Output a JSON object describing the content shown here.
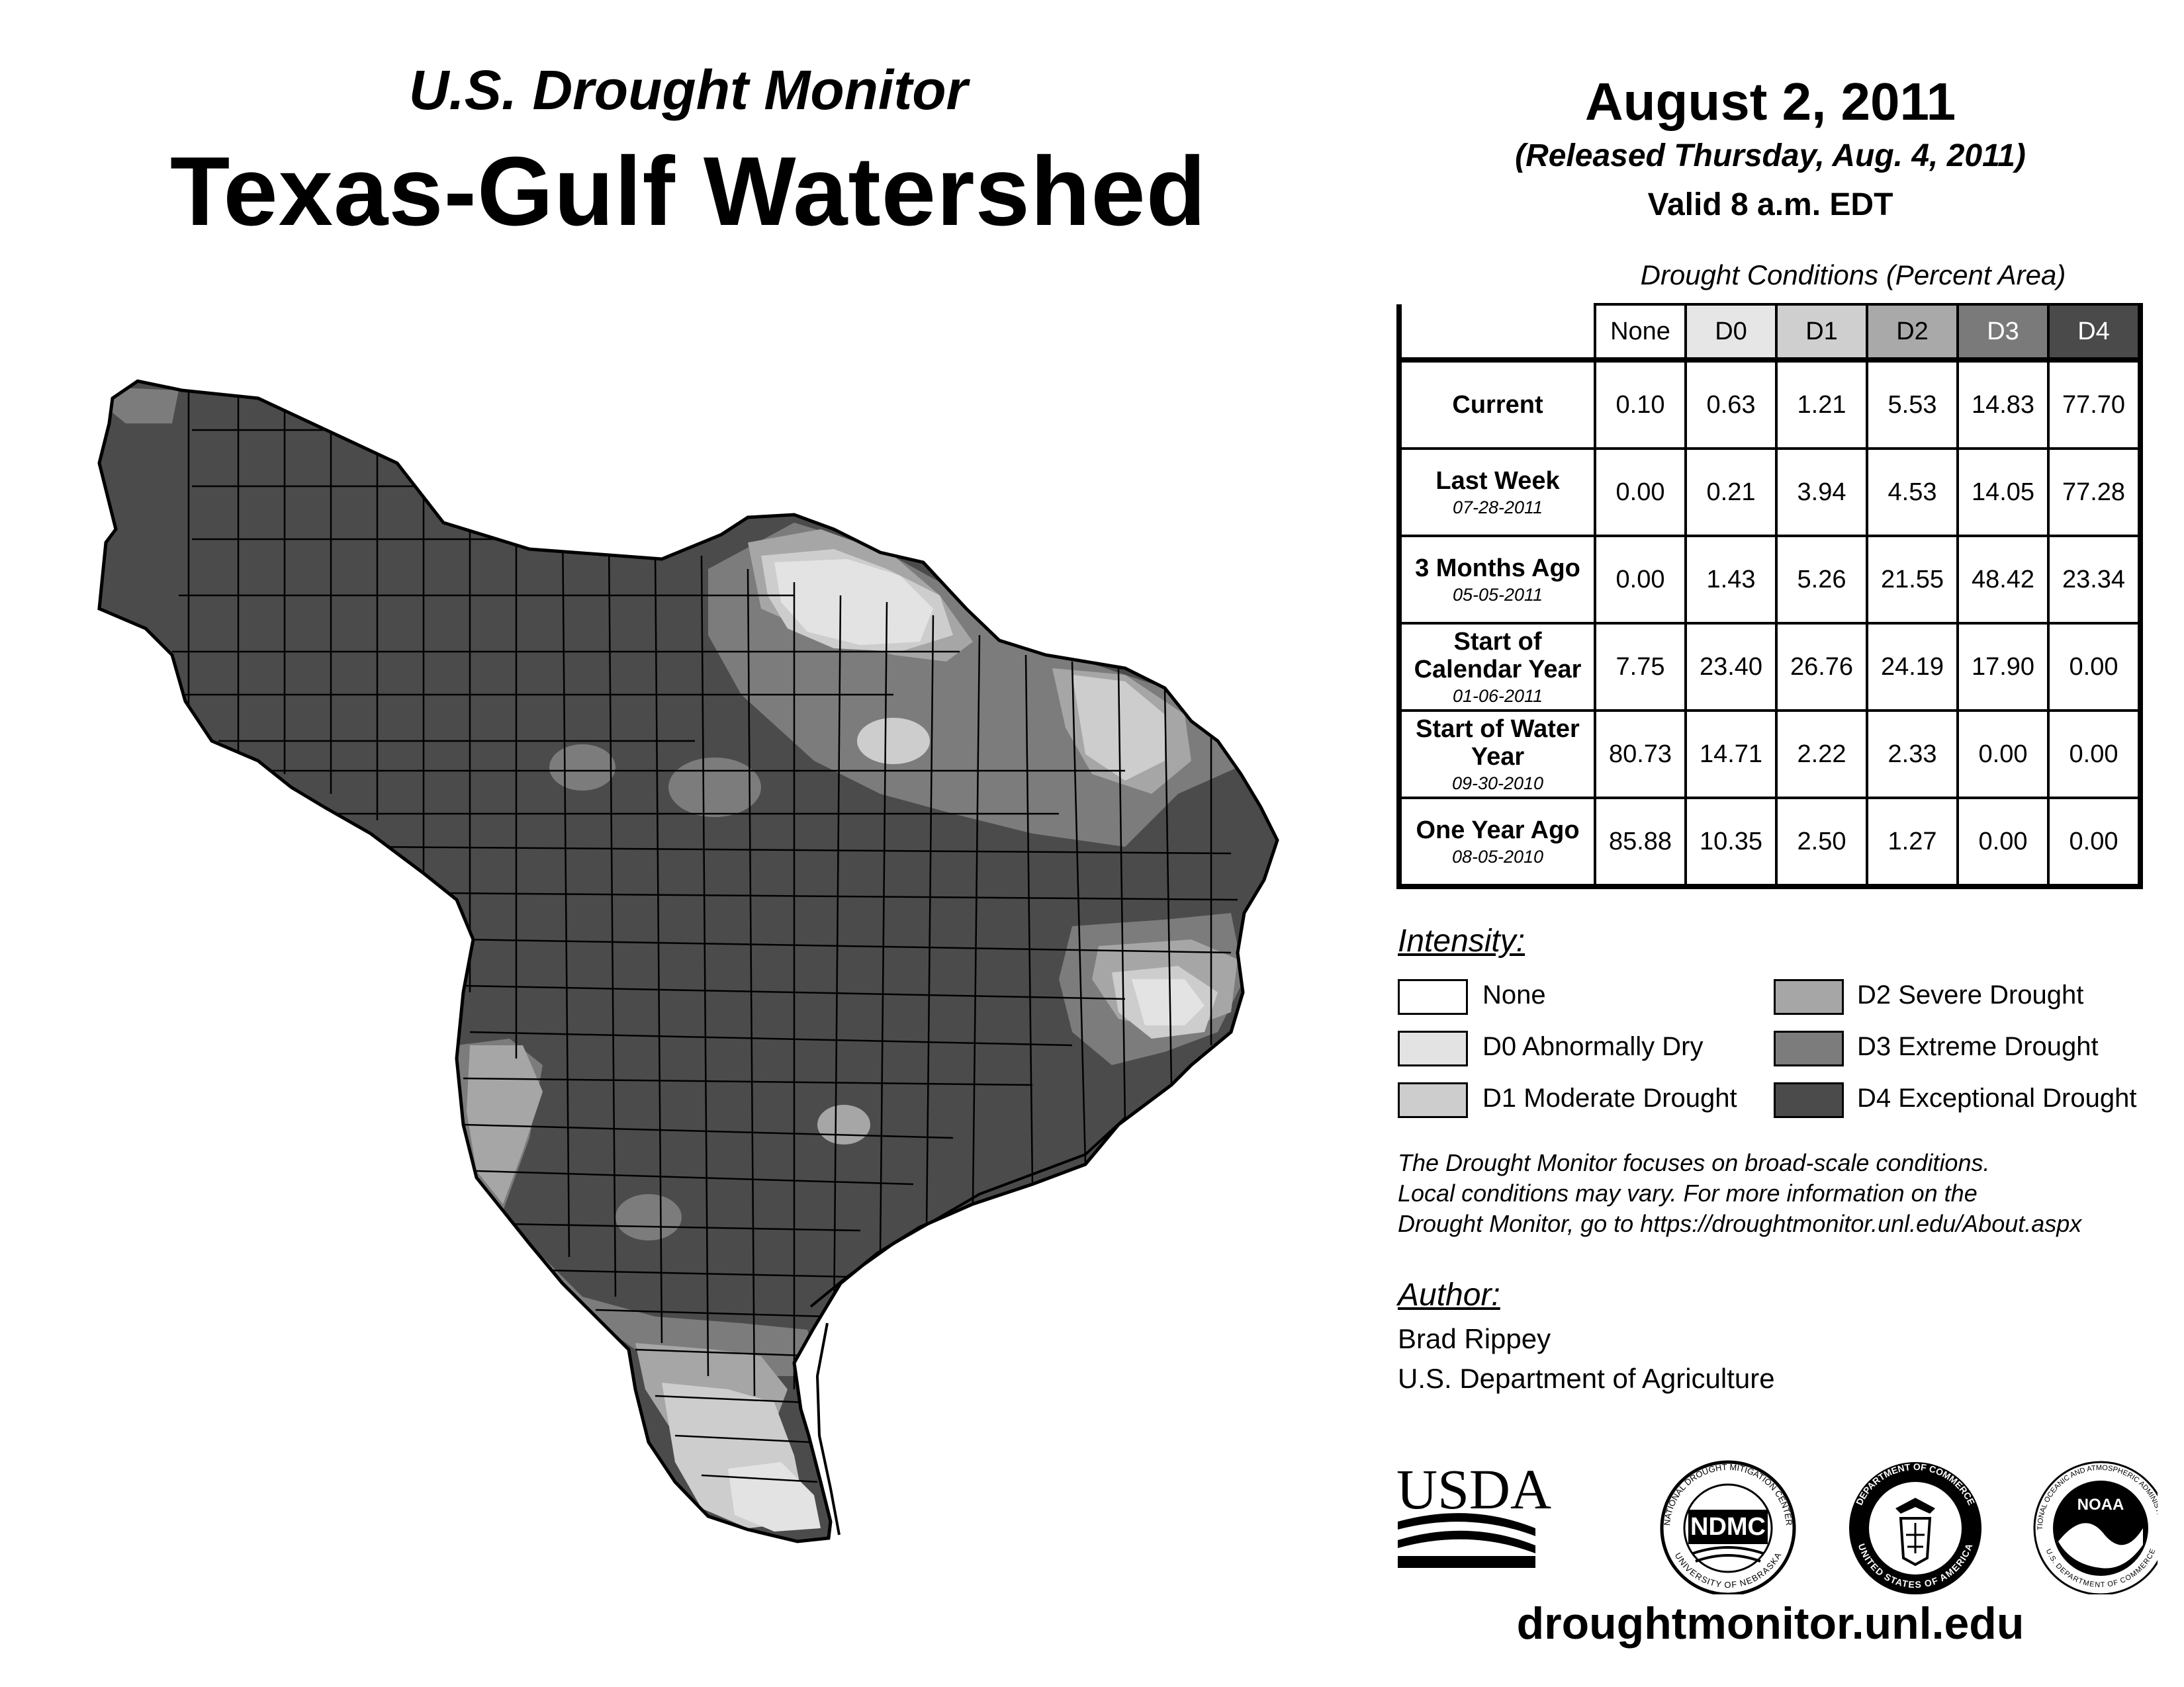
{
  "header": {
    "subtitle": "U.S. Drought Monitor",
    "title": "Texas-Gulf Watershed",
    "date": "August 2, 2011",
    "released": "(Released Thursday, Aug. 4, 2011)",
    "valid": "Valid 8 a.m. EDT"
  },
  "table": {
    "caption": "Drought Conditions (Percent Area)",
    "columns": [
      "None",
      "D0",
      "D1",
      "D2",
      "D3",
      "D4"
    ],
    "column_colors": [
      "#ffffff",
      "#e6e6e6",
      "#cfcfcf",
      "#a9a9a9",
      "#7a7a7a",
      "#4a4a4a"
    ],
    "rows": [
      {
        "label": "Current",
        "date": "",
        "values": [
          "0.10",
          "0.63",
          "1.21",
          "5.53",
          "14.83",
          "77.70"
        ]
      },
      {
        "label": "Last Week",
        "date": "07-28-2011",
        "values": [
          "0.00",
          "0.21",
          "3.94",
          "4.53",
          "14.05",
          "77.28"
        ]
      },
      {
        "label": "3 Months Ago",
        "date": "05-05-2011",
        "values": [
          "0.00",
          "1.43",
          "5.26",
          "21.55",
          "48.42",
          "23.34"
        ]
      },
      {
        "label": "Start of Calendar Year",
        "date": "01-06-2011",
        "values": [
          "7.75",
          "23.40",
          "26.76",
          "24.19",
          "17.90",
          "0.00"
        ]
      },
      {
        "label": "Start of Water Year",
        "date": "09-30-2010",
        "values": [
          "80.73",
          "14.71",
          "2.22",
          "2.33",
          "0.00",
          "0.00"
        ]
      },
      {
        "label": "One Year Ago",
        "date": "08-05-2010",
        "values": [
          "85.88",
          "10.35",
          "2.50",
          "1.27",
          "0.00",
          "0.00"
        ]
      }
    ]
  },
  "legend": {
    "heading": "Intensity:",
    "items": [
      {
        "label": "None",
        "color": "#ffffff"
      },
      {
        "label": "D0 Abnormally Dry",
        "color": "#e3e3e3"
      },
      {
        "label": "D1 Moderate Drought",
        "color": "#cdcdcd"
      },
      {
        "label": "D2 Severe Drought",
        "color": "#a6a6a6"
      },
      {
        "label": "D3 Extreme Drought",
        "color": "#7c7c7c"
      },
      {
        "label": "D4 Exceptional Drought",
        "color": "#4b4b4b"
      }
    ]
  },
  "note": {
    "line1": "The Drought Monitor focuses on broad-scale conditions.",
    "line2": "Local conditions may vary. For more information on the",
    "line3": "Drought Monitor, go to https://droughtmonitor.unl.edu/About.aspx"
  },
  "author": {
    "heading": "Author:",
    "name": "Brad Rippey",
    "org": "U.S. Department of Agriculture"
  },
  "logos": {
    "usda": "USDA",
    "ndmc": "NDMC",
    "ndmc_ring_top": "NATIONAL DROUGHT MITIGATION CENTER",
    "ndmc_ring_bottom": "UNIVERSITY OF NEBRASKA",
    "doc_ring_top": "DEPARTMENT OF COMMERCE",
    "doc_ring_bottom": "UNITED STATES OF AMERICA",
    "noaa": "NOAA",
    "noaa_ring_top": "NATIONAL OCEANIC AND ATMOSPHERIC ADMINISTRATION",
    "noaa_ring_bottom": "U.S. DEPARTMENT OF COMMERCE"
  },
  "footer": {
    "url": "droughtmonitor.unl.edu"
  }
}
